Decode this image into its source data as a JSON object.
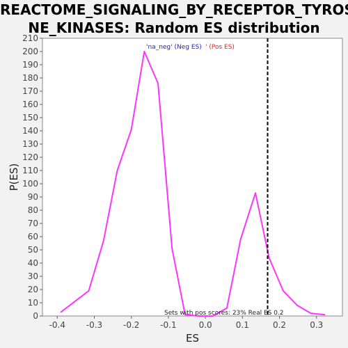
{
  "chart_data": {
    "type": "line",
    "title_line1": "REACTOME_SIGNALING_BY_RECEPTOR_TYROSI",
    "title_line2": "NE_KINASES: Random ES distribution",
    "xlabel": "ES",
    "ylabel": "P(ES)",
    "xlim": [
      -0.44,
      0.37
    ],
    "ylim": [
      0,
      210
    ],
    "x_ticks": [
      -0.4,
      -0.3,
      -0.2,
      -0.1,
      0.0,
      0.1,
      0.2,
      0.3
    ],
    "x_tick_labels": [
      "-0.4",
      "-0.3",
      "-0.2",
      "-0.1",
      "0.0",
      "0.1",
      "0.2",
      "0.3"
    ],
    "y_ticks": [
      0,
      10,
      20,
      30,
      40,
      50,
      60,
      70,
      80,
      90,
      100,
      110,
      120,
      130,
      140,
      150,
      160,
      170,
      180,
      190,
      200,
      210
    ],
    "grid": false,
    "series": [
      {
        "color": "#ff33ff",
        "x": [
          -0.39,
          -0.315,
          -0.275,
          -0.238,
          -0.2,
          -0.165,
          -0.128,
          -0.09,
          -0.055,
          -0.018,
          0.02,
          0.058,
          0.095,
          0.135,
          0.172,
          0.21,
          0.248,
          0.285,
          0.322
        ],
        "y": [
          3,
          19,
          57,
          110,
          141,
          200,
          176,
          51,
          1,
          0,
          0,
          6,
          58,
          93,
          44,
          19,
          8,
          2,
          1
        ]
      }
    ],
    "real_es_line": {
      "x": 0.168,
      "style": "dashed",
      "color": "#000000"
    },
    "legend": {
      "neg_text": "'na_neg' (Neg ES)",
      "neg_color": "#2222cc",
      "pos_text": "' (Pos ES)",
      "pos_color": "#dd2222",
      "placement": "top-center"
    },
    "annotation": "Sets with pos scores: 23%  Real ES 0.2"
  }
}
